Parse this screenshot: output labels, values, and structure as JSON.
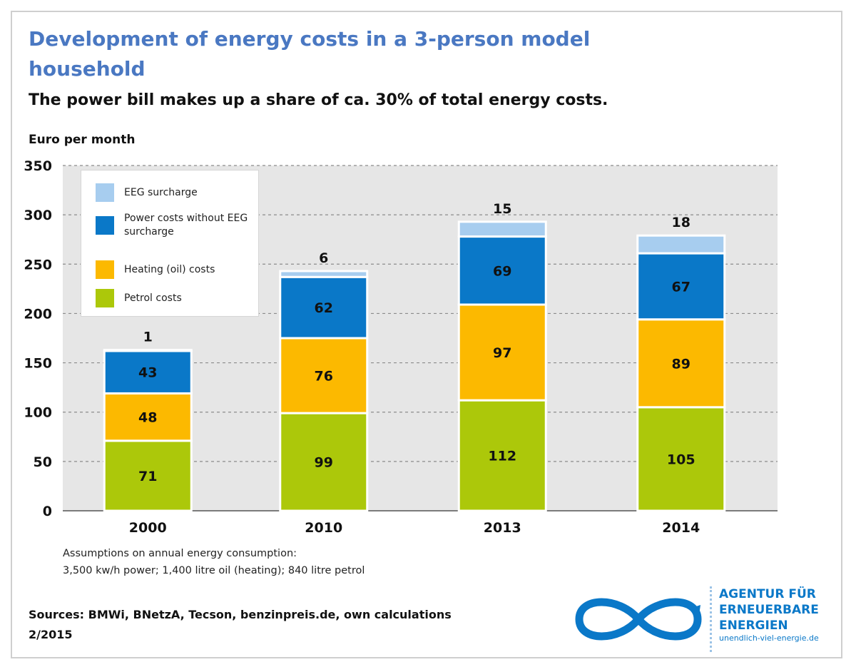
{
  "title": "Development of energy costs in a 3-person model household",
  "subtitle": "The power bill makes up a share of ca. 30% of total energy costs.",
  "notes": {
    "line1": "Assumptions on annual energy consumption:",
    "line2": "3,500 kw/h power; 1,400 litre oil (heating); 840 litre petrol"
  },
  "sources": {
    "line1": "Sources: BMWi, BNetzA, Tecson, benzinpreis.de, own calculations",
    "line2": "2/2015"
  },
  "logo": {
    "line1": "AGENTUR FÜR",
    "line2": "ERNEUERBARE",
    "line3": "ENERGIEN",
    "line4": "unendlich-viel-energie.de",
    "icon": "infinity-icon",
    "color": "#0a78c8"
  },
  "chart_data": {
    "type": "bar",
    "stacked": true,
    "categories": [
      "2000",
      "2010",
      "2013",
      "2014"
    ],
    "ylabel": "Euro per month",
    "ylim": [
      0,
      350
    ],
    "yticks": [
      0,
      50,
      100,
      150,
      200,
      250,
      300,
      350
    ],
    "grid": true,
    "legend_position": "top-left",
    "series": [
      {
        "name": "Petrol costs",
        "values": [
          71,
          99,
          112,
          105
        ],
        "color": "#acc80a"
      },
      {
        "name": "Heating (oil) costs",
        "values": [
          48,
          76,
          97,
          89
        ],
        "color": "#fcb900"
      },
      {
        "name": "Power costs without EEG surcharge",
        "values": [
          43,
          62,
          69,
          67
        ],
        "color": "#0a78c8"
      },
      {
        "name": "EEG surcharge",
        "values": [
          1,
          6,
          15,
          18
        ],
        "color": "#a7cdef"
      }
    ]
  }
}
